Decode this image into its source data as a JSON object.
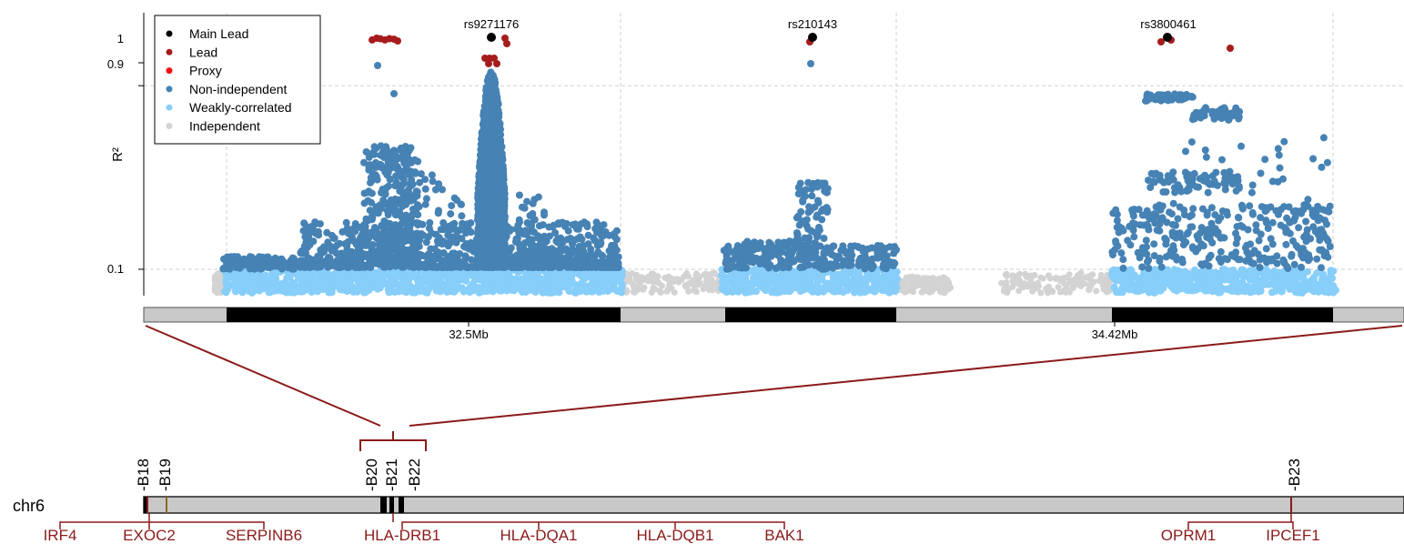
{
  "chart_data": {
    "type": "scatter",
    "ylabel": "R²",
    "yticks": [
      {
        "value": 1,
        "label": "1"
      },
      {
        "value": 0.9,
        "label": "0.9"
      },
      {
        "value": 0.1,
        "label": "0.1"
      }
    ],
    "xticks": [
      {
        "label": "32.5Mb"
      },
      {
        "label": "34.42Mb"
      }
    ],
    "legend": {
      "placement": "top-left",
      "items": [
        {
          "label": "Main Lead",
          "color": "#000000"
        },
        {
          "label": "Lead",
          "color": "#a61c1c"
        },
        {
          "label": "Proxy",
          "color": "#ee1111"
        },
        {
          "label": "Non-independent",
          "color": "#4682b4"
        },
        {
          "label": "Weakly-correlated",
          "color": "#87cefa"
        },
        {
          "label": "Independent",
          "color": "#d3d3d3"
        }
      ]
    },
    "lead_snps": [
      {
        "label": "rs9271176",
        "r2": 1.0
      },
      {
        "label": "rs210143",
        "r2": 1.0
      },
      {
        "label": "rs3800461",
        "r2": 1.0
      }
    ],
    "grid": true,
    "chromosome": {
      "label": "chr6",
      "bands": [
        "B18",
        "B19",
        "B20",
        "B21",
        "B22",
        "B23"
      ],
      "genes": [
        "IRF4",
        "EXOC2",
        "SERPINB6",
        "HLA-DRB1",
        "HLA-DQA1",
        "HLA-DQB1",
        "BAK1",
        "OPRM1",
        "IPCEF1"
      ]
    }
  }
}
